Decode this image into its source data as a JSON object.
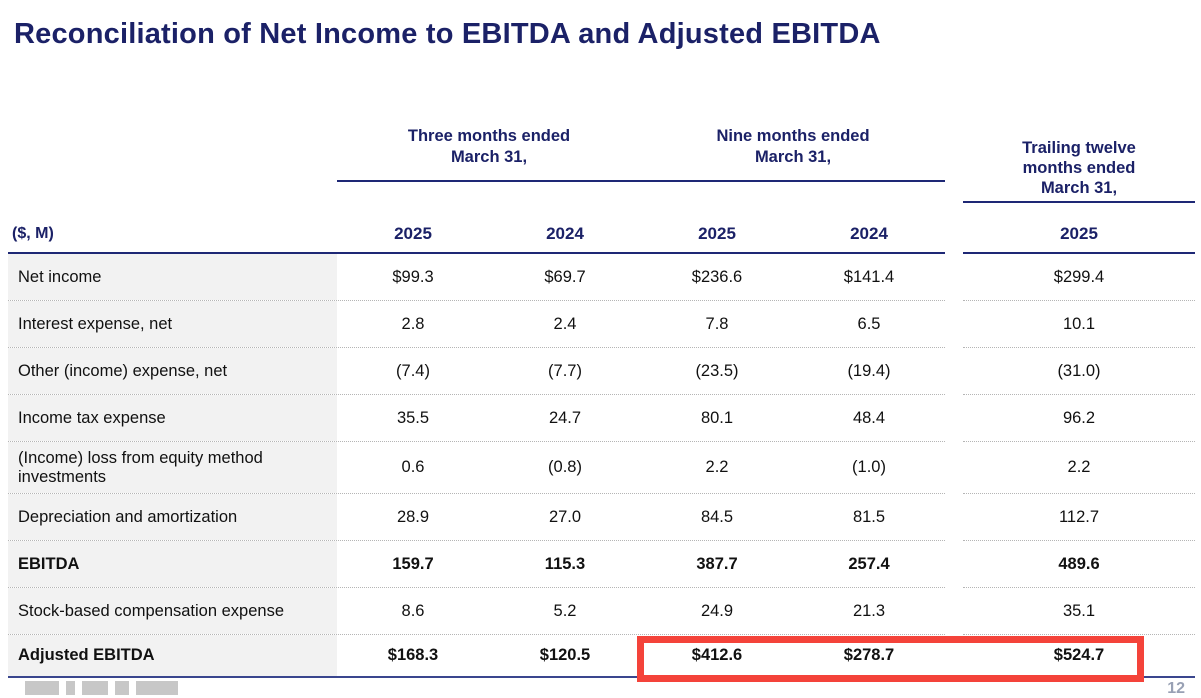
{
  "title": "Reconciliation of Net Income to EBITDA and Adjusted EBITDA",
  "page_number": "12",
  "colors": {
    "navy_text": "#1b2167",
    "rule_navy": "#1e2875",
    "label_column_bg": "#f2f2f2",
    "highlight_red": "#f4433a"
  },
  "table": {
    "units_label": "($, M)",
    "column_groups": [
      {
        "label": "Three months ended\nMarch 31,",
        "years": [
          "2025",
          "2024"
        ]
      },
      {
        "label": "Nine months ended\nMarch 31,",
        "years": [
          "2025",
          "2024"
        ]
      },
      {
        "label": "Trailing twelve\nmonths ended\nMarch 31,",
        "years": [
          "2025"
        ]
      }
    ],
    "rows": [
      {
        "label": "Net income",
        "bold": false,
        "tall": false,
        "values": [
          "$99.3",
          "$69.7",
          "$236.6",
          "$141.4",
          "$299.4"
        ]
      },
      {
        "label": "Interest expense, net",
        "bold": false,
        "tall": false,
        "values": [
          "2.8",
          "2.4",
          "7.8",
          "6.5",
          "10.1"
        ]
      },
      {
        "label": "Other (income) expense, net",
        "bold": false,
        "tall": false,
        "values": [
          "(7.4)",
          "(7.7)",
          "(23.5)",
          "(19.4)",
          "(31.0)"
        ]
      },
      {
        "label": "Income tax expense",
        "bold": false,
        "tall": false,
        "values": [
          "35.5",
          "24.7",
          "80.1",
          "48.4",
          "96.2"
        ]
      },
      {
        "label": "(Income) loss from equity method investments",
        "bold": false,
        "tall": true,
        "values": [
          "0.6",
          "(0.8)",
          "2.2",
          "(1.0)",
          "2.2"
        ]
      },
      {
        "label": "Depreciation and amortization",
        "bold": false,
        "tall": false,
        "values": [
          "28.9",
          "27.0",
          "84.5",
          "81.5",
          "112.7"
        ]
      },
      {
        "label": "EBITDA",
        "bold": true,
        "tall": false,
        "values": [
          "159.7",
          "115.3",
          "387.7",
          "257.4",
          "489.6"
        ]
      },
      {
        "label": "Stock-based compensation expense",
        "bold": false,
        "tall": false,
        "values": [
          "8.6",
          "5.2",
          "24.9",
          "21.3",
          "35.1"
        ]
      },
      {
        "label": "Adjusted EBITDA",
        "bold": true,
        "tall": false,
        "values": [
          "$168.3",
          "$120.5",
          "$412.6",
          "$278.7",
          "$524.7"
        ]
      }
    ]
  },
  "highlight": {
    "note": "red rectangle around nine-months 2025/2024 and trailing-twelve-months Adjusted EBITDA values"
  }
}
